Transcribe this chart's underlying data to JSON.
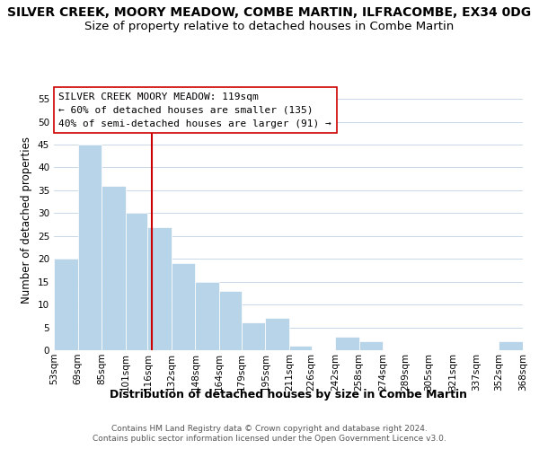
{
  "title": "SILVER CREEK, MOORY MEADOW, COMBE MARTIN, ILFRACOMBE, EX34 0DG",
  "subtitle": "Size of property relative to detached houses in Combe Martin",
  "xlabel": "Distribution of detached houses by size in Combe Martin",
  "ylabel": "Number of detached properties",
  "bin_edges": [
    53,
    69,
    85,
    101,
    116,
    132,
    148,
    164,
    179,
    195,
    211,
    226,
    242,
    258,
    274,
    289,
    305,
    321,
    337,
    352,
    368
  ],
  "bin_labels": [
    "53sqm",
    "69sqm",
    "85sqm",
    "101sqm",
    "116sqm",
    "132sqm",
    "148sqm",
    "164sqm",
    "179sqm",
    "195sqm",
    "211sqm",
    "226sqm",
    "242sqm",
    "258sqm",
    "274sqm",
    "289sqm",
    "305sqm",
    "321sqm",
    "337sqm",
    "352sqm",
    "368sqm"
  ],
  "counts": [
    20,
    45,
    36,
    30,
    27,
    19,
    15,
    13,
    6,
    7,
    1,
    0,
    3,
    2,
    0,
    0,
    0,
    0,
    0,
    2
  ],
  "bar_color": "#b8d4e8",
  "vline_x": 119,
  "vline_color": "#cc0000",
  "ylim": [
    0,
    57
  ],
  "yticks": [
    0,
    5,
    10,
    15,
    20,
    25,
    30,
    35,
    40,
    45,
    50,
    55
  ],
  "annotation_line1": "SILVER CREEK MOORY MEADOW: 119sqm",
  "annotation_line2": "← 60% of detached houses are smaller (135)",
  "annotation_line3": "40% of semi-detached houses are larger (91) →",
  "footnote1": "Contains HM Land Registry data © Crown copyright and database right 2024.",
  "footnote2": "Contains public sector information licensed under the Open Government Licence v3.0.",
  "background_color": "#ffffff",
  "grid_color": "#c8d8e8",
  "title_fontsize": 10,
  "subtitle_fontsize": 9.5,
  "ylabel_fontsize": 8.5,
  "xlabel_fontsize": 9,
  "tick_fontsize": 7.5,
  "annotation_fontsize": 8,
  "footnote_fontsize": 6.5
}
